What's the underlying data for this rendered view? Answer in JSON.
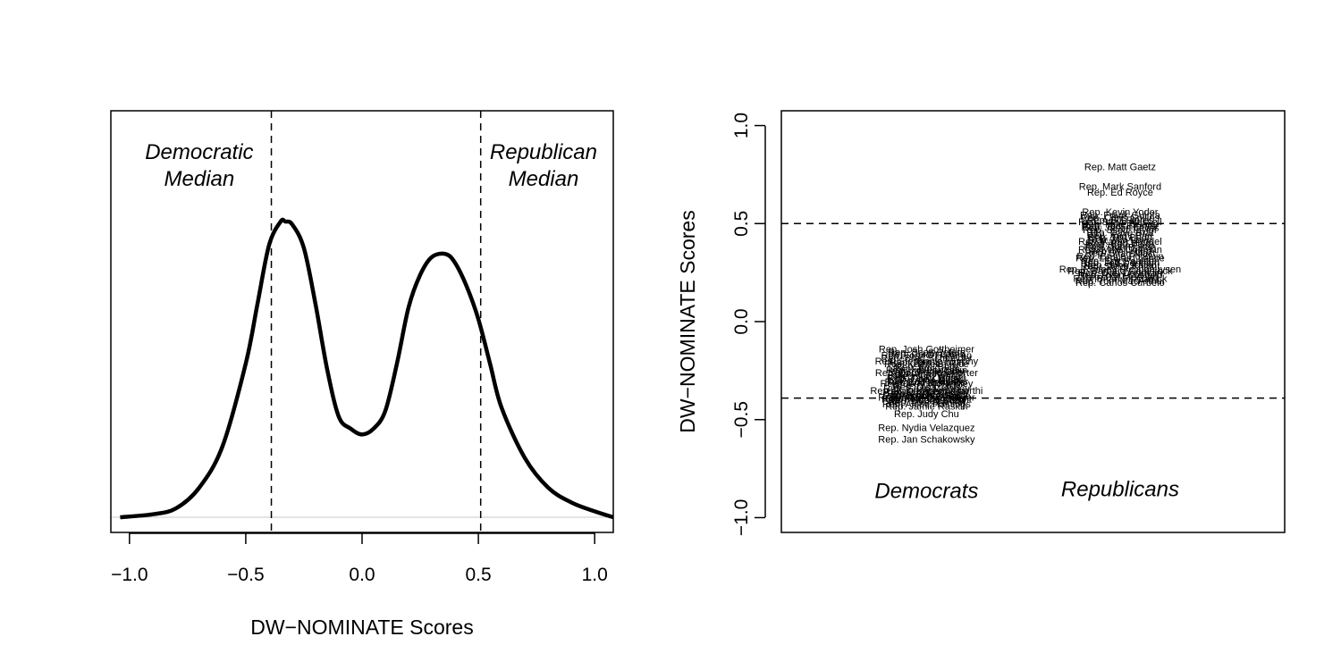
{
  "chart_data": [
    {
      "type": "line",
      "subtype": "density",
      "xlabel": "DW−NOMINATE Scores",
      "ylabel": "",
      "xlim": [
        -1.08,
        1.08
      ],
      "x_ticks": [
        -1.0,
        -0.5,
        0.0,
        0.5,
        1.0
      ],
      "x_tick_labels": [
        "−1.0",
        "−0.5",
        "0.0",
        "0.5",
        "1.0"
      ],
      "y_axis_drawn": false,
      "series": [
        {
          "x": [
            -1.04,
            -0.9,
            -0.8,
            -0.7,
            -0.6,
            -0.5,
            -0.45,
            -0.4,
            -0.35,
            -0.33,
            -0.3,
            -0.25,
            -0.2,
            -0.15,
            -0.1,
            -0.05,
            0.0,
            0.05,
            0.1,
            0.15,
            0.2,
            0.25,
            0.3,
            0.36,
            0.4,
            0.45,
            0.5,
            0.55,
            0.6,
            0.7,
            0.8,
            0.9,
            1.0,
            1.08
          ],
          "y": [
            0.0,
            0.01,
            0.03,
            0.1,
            0.24,
            0.52,
            0.72,
            0.92,
            1.0,
            1.0,
            0.99,
            0.91,
            0.72,
            0.5,
            0.34,
            0.3,
            0.28,
            0.3,
            0.36,
            0.52,
            0.71,
            0.82,
            0.88,
            0.89,
            0.86,
            0.78,
            0.67,
            0.52,
            0.37,
            0.2,
            0.1,
            0.05,
            0.02,
            0.0
          ]
        }
      ],
      "vlines": [
        {
          "x": -0.39,
          "style": "dashed"
        },
        {
          "x": 0.51,
          "style": "dashed"
        }
      ],
      "baseline": {
        "y": 0,
        "color": "#c8c8c8"
      },
      "annotations": [
        {
          "lines": [
            "Democratic",
            "Median"
          ],
          "x": -0.7
        },
        {
          "lines": [
            "Republican",
            "Median"
          ],
          "x": 0.78
        }
      ],
      "grid": false
    },
    {
      "type": "scatter",
      "subtype": "text-labels",
      "xlabel": "",
      "ylabel": "DW−NOMINATE Scores",
      "ylim": [
        -1.08,
        1.08
      ],
      "y_ticks": [
        -1.0,
        -0.5,
        0.0,
        0.5,
        1.0
      ],
      "y_tick_labels": [
        "−1.0",
        "−0.5",
        "0.0",
        "0.5",
        "1.0"
      ],
      "hlines": [
        {
          "y": 0.5,
          "style": "dashed"
        },
        {
          "y": -0.39,
          "style": "dashed"
        }
      ],
      "group_labels": [
        {
          "label": "Democrats",
          "x": 1,
          "y": -0.9
        },
        {
          "label": "Republicans",
          "x": 2,
          "y": -0.89
        }
      ],
      "x_groups": [
        1,
        2
      ],
      "xlim": [
        0.25,
        2.85
      ],
      "grid": false,
      "points": [
        {
          "label": "Rep. Matt Gaetz",
          "x": 2,
          "y": 0.79
        },
        {
          "label": "Rep. Mark Sanford",
          "x": 2,
          "y": 0.69
        },
        {
          "label": "Rep. Ed Royce",
          "x": 2,
          "y": 0.66
        },
        {
          "label": "Rep. Kevin Yoder",
          "x": 2,
          "y": 0.56
        },
        {
          "label": "Rep. Frank Guinta",
          "x": 2,
          "y": 0.545
        },
        {
          "label": "Rep. Chris Collins",
          "x": 2,
          "y": 0.53
        },
        {
          "label": "Rep. Bill Flores",
          "x": 2,
          "y": 0.52
        },
        {
          "label": "Rep. Steve Russell",
          "x": 2,
          "y": 0.51
        },
        {
          "label": "Rep. Mike Bishop",
          "x": 2,
          "y": 0.5
        },
        {
          "label": "Rep. Tom Emmer",
          "x": 2,
          "y": 0.49
        },
        {
          "label": "Rep. Jason Lewis",
          "x": 2,
          "y": 0.48
        },
        {
          "label": "Rep. Scott Taylor",
          "x": 2,
          "y": 0.47
        },
        {
          "label": "Rep. Dave Brat",
          "x": 2,
          "y": 0.455
        },
        {
          "label": "Rep. Andy Barr",
          "x": 2,
          "y": 0.44
        },
        {
          "label": "Rep. Ted Budd",
          "x": 2,
          "y": 0.43
        },
        {
          "label": "Rep. Mia Love",
          "x": 2,
          "y": 0.42
        },
        {
          "label": "Rep. Karen Handel",
          "x": 2,
          "y": 0.41
        },
        {
          "label": "Rep. Rod Blum",
          "x": 2,
          "y": 0.4
        },
        {
          "label": "Rep. John Faso",
          "x": 2,
          "y": 0.39
        },
        {
          "label": "Rep. Don Bacon",
          "x": 2,
          "y": 0.38
        },
        {
          "label": "Rep. Mike Coffman",
          "x": 2,
          "y": 0.37
        },
        {
          "label": "Rep. Will Hurd",
          "x": 2,
          "y": 0.36
        },
        {
          "label": "Rep. Brian Mast",
          "x": 2,
          "y": 0.35
        },
        {
          "label": "Rep. Bruce Poliquin",
          "x": 2,
          "y": 0.335
        },
        {
          "label": "Rep. Leonard Lance",
          "x": 2,
          "y": 0.325
        },
        {
          "label": "Rep. Erik Paulsen",
          "x": 2,
          "y": 0.31
        },
        {
          "label": "Rep. Jeff Denham",
          "x": 2,
          "y": 0.3
        },
        {
          "label": "Rep. John Katko",
          "x": 2,
          "y": 0.29
        },
        {
          "label": "Rep. Steve Knight",
          "x": 2,
          "y": 0.285
        },
        {
          "label": "Rep. Rodney Frelinghuysen",
          "x": 2,
          "y": 0.27
        },
        {
          "label": "Rep. Barbara Comstock",
          "x": 2,
          "y": 0.26
        },
        {
          "label": "Rep. Dan Donovan",
          "x": 2,
          "y": 0.25
        },
        {
          "label": "Rep. Ryan Costello",
          "x": 2,
          "y": 0.24
        },
        {
          "label": "Rep. Pat Meehan",
          "x": 2,
          "y": 0.23
        },
        {
          "label": "Rep. Brian Fitzpatrick",
          "x": 2,
          "y": 0.22
        },
        {
          "label": "Rep. Tom MacArthur",
          "x": 2,
          "y": 0.21
        },
        {
          "label": "Rep. Carlos Curbelo",
          "x": 2,
          "y": 0.2
        },
        {
          "label": "Rep. Josh Gottheimer",
          "x": 1,
          "y": -0.14
        },
        {
          "label": "Rep. Scott Peters",
          "x": 1,
          "y": -0.155
        },
        {
          "label": "Rep. Conor Lamb",
          "x": 1,
          "y": -0.165
        },
        {
          "label": "Rep. Tom O'Halleran",
          "x": 1,
          "y": -0.17
        },
        {
          "label": "Rep. Brad Schneider",
          "x": 1,
          "y": -0.185
        },
        {
          "label": "Rep. Stephanie Murphy",
          "x": 1,
          "y": -0.2
        },
        {
          "label": "Rep. Tom Suozzi",
          "x": 1,
          "y": -0.205
        },
        {
          "label": "Rep. Kathleen Rice",
          "x": 1,
          "y": -0.215
        },
        {
          "label": "Rep. Ami Bera",
          "x": 1,
          "y": -0.23
        },
        {
          "label": "Rep. Jim Costa",
          "x": 1,
          "y": -0.24
        },
        {
          "label": "Rep. Jim Langevin",
          "x": 1,
          "y": -0.245
        },
        {
          "label": "Rep. Charlie Crist",
          "x": 1,
          "y": -0.255
        },
        {
          "label": "Rep. Carol Shea-Porter",
          "x": 1,
          "y": -0.26
        },
        {
          "label": "Rep. Ann Kuster",
          "x": 1,
          "y": -0.265
        },
        {
          "label": "Rep. Tim Walz",
          "x": 1,
          "y": -0.275
        },
        {
          "label": "Rep. Jacky Rosen",
          "x": 1,
          "y": -0.285
        },
        {
          "label": "Rep. Dan Lipinski",
          "x": 1,
          "y": -0.29
        },
        {
          "label": "Rep. Ron Kind",
          "x": 1,
          "y": -0.3
        },
        {
          "label": "Rep. Ed Perlmutter",
          "x": 1,
          "y": -0.305
        },
        {
          "label": "Rep. Val Demings",
          "x": 1,
          "y": -0.31
        },
        {
          "label": "Rep. Jerry McNerney",
          "x": 1,
          "y": -0.315
        },
        {
          "label": "Rep. Dina Titus",
          "x": 1,
          "y": -0.33
        },
        {
          "label": "Rep. Sean Maloney",
          "x": 1,
          "y": -0.34
        },
        {
          "label": "Rep. Raja Krishnamoorthi",
          "x": 1,
          "y": -0.35
        },
        {
          "label": "Rep. Elizabeth Esty",
          "x": 1,
          "y": -0.355
        },
        {
          "label": "Rep. Annie Kuster",
          "x": 1,
          "y": -0.365
        },
        {
          "label": "Rep. Bill Foster",
          "x": 1,
          "y": -0.37
        },
        {
          "label": "Rep. Brendan Boyle",
          "x": 1,
          "y": -0.375
        },
        {
          "label": "Rep. Don Beyer",
          "x": 1,
          "y": -0.38
        },
        {
          "label": "Rep. Mark DeSaulnier",
          "x": 1,
          "y": -0.385
        },
        {
          "label": "Rep. Joe Courtney",
          "x": 1,
          "y": -0.39
        },
        {
          "label": "Rep. Matt Cartwright",
          "x": 1,
          "y": -0.395
        },
        {
          "label": "Rep. Bobby Scott",
          "x": 1,
          "y": -0.4
        },
        {
          "label": "Rep. Lois Frankel",
          "x": 1,
          "y": -0.41
        },
        {
          "label": "Rep. Alcee Hastings",
          "x": 1,
          "y": -0.42
        },
        {
          "label": "Rep. Jamie Raskin",
          "x": 1,
          "y": -0.43
        },
        {
          "label": "Rep. Judy Chu",
          "x": 1,
          "y": -0.47
        },
        {
          "label": "Rep. Nydia Velazquez",
          "x": 1,
          "y": -0.54
        },
        {
          "label": "Rep. Jan Schakowsky",
          "x": 1,
          "y": -0.6
        }
      ]
    }
  ]
}
